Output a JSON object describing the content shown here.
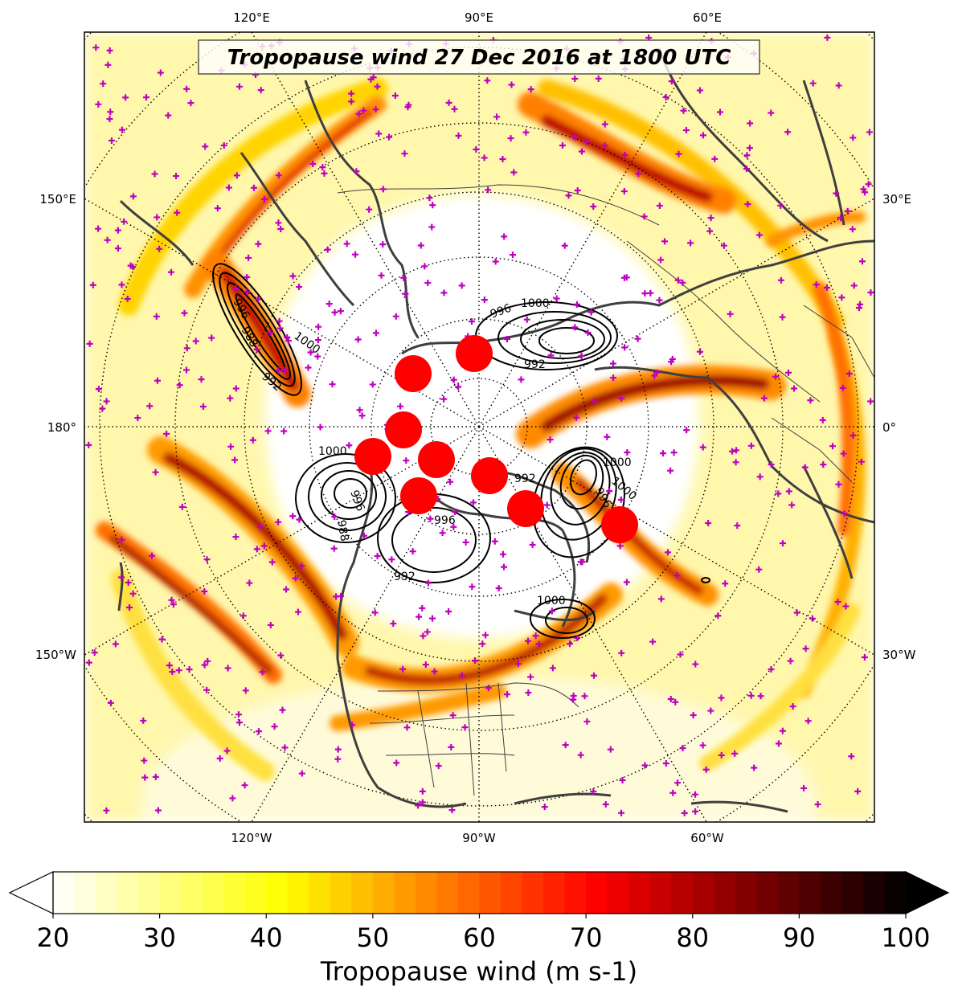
{
  "map": {
    "title": "Tropopause wind 27 Dec 2016 at 1800 UTC",
    "projection": "north-polar-stereographic",
    "top_longitude_labels": [
      "120°E",
      "90°E",
      "60°E"
    ],
    "bottom_longitude_labels": [
      "120°W",
      "90°W",
      "60°W"
    ],
    "left_longitude_labels": [
      "150°E",
      "180°",
      "150°W"
    ],
    "right_longitude_labels": [
      "30°E",
      "0°",
      "30°W"
    ],
    "pressure_contour_labels": [
      "1000",
      "996",
      "992",
      "988",
      "1000",
      "996",
      "992",
      "1000",
      "996",
      "992",
      "988",
      "1000",
      "996",
      "992",
      "1000",
      "996",
      "1000"
    ],
    "colors": {
      "coastline": "#3f3f3f",
      "station_marker": "#c000c0",
      "cyclone_marker": "#ff0000",
      "contour": "#000000"
    }
  },
  "colorbar": {
    "label": "Tropopause wind (m s-1)",
    "ticks": [
      "20",
      "30",
      "40",
      "50",
      "60",
      "70",
      "80",
      "90",
      "100"
    ],
    "min": 20,
    "max": 100,
    "colormap": "hot_r"
  }
}
